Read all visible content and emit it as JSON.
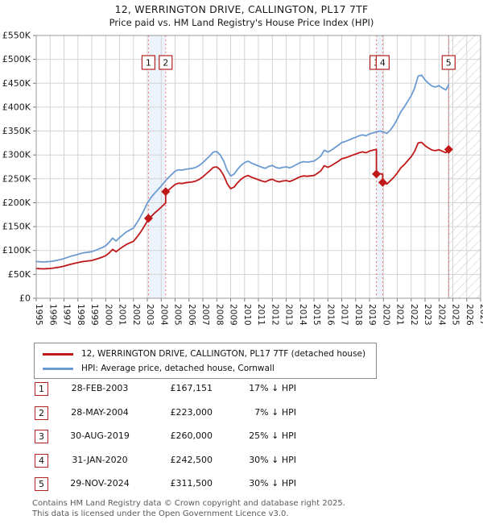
{
  "title": "12, WERRINGTON DRIVE, CALLINGTON, PL17 7TF",
  "subtitle": "Price paid vs. HM Land Registry's House Price Index (HPI)",
  "legend": [
    {
      "label": "12, WERRINGTON DRIVE, CALLINGTON, PL17 7TF (detached house)",
      "color": "#c01818"
    },
    {
      "label": "HPI: Average price, detached house, Cornwall",
      "color": "#6c9bd2"
    }
  ],
  "transactions": [
    {
      "num": "1",
      "date": "28-FEB-2003",
      "price": "£167,151",
      "delta": "17% ↓ HPI"
    },
    {
      "num": "2",
      "date": "28-MAY-2004",
      "price": "£223,000",
      "delta": "7% ↓ HPI"
    },
    {
      "num": "3",
      "date": "30-AUG-2019",
      "price": "£260,000",
      "delta": "25% ↓ HPI"
    },
    {
      "num": "4",
      "date": "31-JAN-2020",
      "price": "£242,500",
      "delta": "30% ↓ HPI"
    },
    {
      "num": "5",
      "date": "29-NOV-2024",
      "price": "£311,500",
      "delta": "30% ↓ HPI"
    }
  ],
  "footer": {
    "line1": "Contains HM Land Registry data © Crown copyright and database right 2025.",
    "line2": "This data is licensed under the Open Government Licence v3.0."
  },
  "chart_data": {
    "type": "line",
    "xlim": [
      1995,
      2027
    ],
    "ylim": [
      0,
      550
    ],
    "x_ticks": [
      1995,
      1996,
      1997,
      1998,
      1999,
      2000,
      2001,
      2002,
      2003,
      2004,
      2005,
      2006,
      2007,
      2008,
      2009,
      2010,
      2011,
      2012,
      2013,
      2014,
      2015,
      2016,
      2017,
      2018,
      2019,
      2020,
      2021,
      2022,
      2023,
      2024,
      2025,
      2026,
      2027
    ],
    "y_ticks": [
      {
        "v": 0,
        "label": "£0"
      },
      {
        "v": 50,
        "label": "£50K"
      },
      {
        "v": 100,
        "label": "£100K"
      },
      {
        "v": 150,
        "label": "£150K"
      },
      {
        "v": 200,
        "label": "£200K"
      },
      {
        "v": 250,
        "label": "£250K"
      },
      {
        "v": 300,
        "label": "£300K"
      },
      {
        "v": 350,
        "label": "£350K"
      },
      {
        "v": 400,
        "label": "£400K"
      },
      {
        "v": 450,
        "label": "£450K"
      },
      {
        "v": 500,
        "label": "£500K"
      },
      {
        "v": 550,
        "label": "£550K"
      }
    ],
    "units": "thousands_gbp",
    "bands": [
      [
        2003.08,
        2004.32
      ],
      [
        2019.5,
        2019.95
      ]
    ],
    "future_start": 2024.7,
    "sales": [
      {
        "n": "1",
        "x": 2003.08,
        "y": 167.2
      },
      {
        "n": "2",
        "x": 2004.32,
        "y": 223
      },
      {
        "n": "3",
        "x": 2019.5,
        "y": 260
      },
      {
        "n": "4",
        "x": 2019.95,
        "y": 242.5
      },
      {
        "n": "5",
        "x": 2024.7,
        "y": 311.5
      }
    ],
    "series": [
      {
        "name": "hpi",
        "color": "#6c9bd2",
        "points": [
          [
            1995,
            77
          ],
          [
            1995.25,
            76.5
          ],
          [
            1995.5,
            76
          ],
          [
            1995.75,
            76.5
          ],
          [
            1996,
            77
          ],
          [
            1996.25,
            78
          ],
          [
            1996.5,
            79.5
          ],
          [
            1996.75,
            81
          ],
          [
            1997,
            83
          ],
          [
            1997.25,
            85.5
          ],
          [
            1997.5,
            88
          ],
          [
            1997.75,
            90
          ],
          [
            1998,
            92
          ],
          [
            1998.25,
            94
          ],
          [
            1998.5,
            95.5
          ],
          [
            1998.75,
            96.5
          ],
          [
            1999,
            97.5
          ],
          [
            1999.25,
            100
          ],
          [
            1999.5,
            103
          ],
          [
            1999.75,
            106
          ],
          [
            2000,
            110
          ],
          [
            2000.25,
            117
          ],
          [
            2000.5,
            126
          ],
          [
            2000.75,
            120
          ],
          [
            2001,
            127
          ],
          [
            2001.25,
            133
          ],
          [
            2001.5,
            139
          ],
          [
            2001.75,
            143
          ],
          [
            2002,
            147
          ],
          [
            2002.25,
            158
          ],
          [
            2002.5,
            170
          ],
          [
            2002.75,
            184
          ],
          [
            2003,
            199
          ],
          [
            2003.25,
            210
          ],
          [
            2003.5,
            219
          ],
          [
            2003.75,
            227
          ],
          [
            2004,
            235
          ],
          [
            2004.25,
            244
          ],
          [
            2004.5,
            252
          ],
          [
            2004.75,
            259
          ],
          [
            2005,
            266
          ],
          [
            2005.25,
            269
          ],
          [
            2005.5,
            268
          ],
          [
            2005.75,
            270
          ],
          [
            2006,
            271
          ],
          [
            2006.25,
            272
          ],
          [
            2006.5,
            274
          ],
          [
            2006.75,
            278
          ],
          [
            2007,
            284
          ],
          [
            2007.25,
            291
          ],
          [
            2007.5,
            298
          ],
          [
            2007.75,
            306
          ],
          [
            2008,
            307
          ],
          [
            2008.25,
            300
          ],
          [
            2008.5,
            287
          ],
          [
            2008.75,
            268
          ],
          [
            2009,
            256
          ],
          [
            2009.25,
            260
          ],
          [
            2009.5,
            270
          ],
          [
            2009.75,
            278
          ],
          [
            2010,
            284
          ],
          [
            2010.25,
            287
          ],
          [
            2010.5,
            283
          ],
          [
            2010.75,
            280
          ],
          [
            2011,
            277
          ],
          [
            2011.25,
            274
          ],
          [
            2011.5,
            272
          ],
          [
            2011.75,
            276
          ],
          [
            2012,
            278
          ],
          [
            2012.25,
            274
          ],
          [
            2012.5,
            272
          ],
          [
            2012.75,
            274
          ],
          [
            2013,
            275
          ],
          [
            2013.25,
            273
          ],
          [
            2013.5,
            276
          ],
          [
            2013.75,
            280
          ],
          [
            2014,
            284
          ],
          [
            2014.25,
            286
          ],
          [
            2014.5,
            285
          ],
          [
            2014.75,
            286
          ],
          [
            2015,
            287
          ],
          [
            2015.25,
            292
          ],
          [
            2015.5,
            298
          ],
          [
            2015.75,
            310
          ],
          [
            2016,
            306
          ],
          [
            2016.25,
            310
          ],
          [
            2016.5,
            315
          ],
          [
            2016.75,
            320
          ],
          [
            2017,
            326
          ],
          [
            2017.25,
            328
          ],
          [
            2017.5,
            331
          ],
          [
            2017.75,
            334
          ],
          [
            2018,
            337
          ],
          [
            2018.25,
            340
          ],
          [
            2018.5,
            342
          ],
          [
            2018.75,
            340
          ],
          [
            2019,
            344
          ],
          [
            2019.25,
            346
          ],
          [
            2019.5,
            348
          ],
          [
            2019.75,
            350
          ],
          [
            2020,
            348
          ],
          [
            2020.25,
            345
          ],
          [
            2020.5,
            352
          ],
          [
            2020.75,
            362
          ],
          [
            2021,
            375
          ],
          [
            2021.25,
            390
          ],
          [
            2021.5,
            400
          ],
          [
            2021.75,
            412
          ],
          [
            2022,
            424
          ],
          [
            2022.25,
            440
          ],
          [
            2022.5,
            465
          ],
          [
            2022.75,
            467
          ],
          [
            2023,
            457
          ],
          [
            2023.25,
            450
          ],
          [
            2023.5,
            444
          ],
          [
            2023.75,
            442
          ],
          [
            2024,
            445
          ],
          [
            2024.25,
            440
          ],
          [
            2024.5,
            436
          ],
          [
            2024.7,
            447
          ]
        ]
      },
      {
        "name": "property",
        "color": "#c01818",
        "points": [
          [
            1995,
            62.5
          ],
          [
            1995.25,
            62
          ],
          [
            1995.5,
            61.6
          ],
          [
            1995.75,
            62
          ],
          [
            1996,
            62.5
          ],
          [
            1996.25,
            63.3
          ],
          [
            1996.5,
            64.5
          ],
          [
            1996.75,
            65.7
          ],
          [
            1997,
            67.3
          ],
          [
            1997.25,
            69.3
          ],
          [
            1997.5,
            71.4
          ],
          [
            1997.75,
            73
          ],
          [
            1998,
            74.6
          ],
          [
            1998.25,
            76.2
          ],
          [
            1998.5,
            77.4
          ],
          [
            1998.75,
            78.3
          ],
          [
            1999,
            79.1
          ],
          [
            1999.25,
            81.1
          ],
          [
            1999.5,
            83.5
          ],
          [
            1999.75,
            86
          ],
          [
            2000,
            89.2
          ],
          [
            2000.25,
            94.9
          ],
          [
            2000.5,
            102.2
          ],
          [
            2000.75,
            97.3
          ],
          [
            2001,
            103
          ],
          [
            2001.25,
            107.9
          ],
          [
            2001.5,
            112.7
          ],
          [
            2001.75,
            116
          ],
          [
            2002,
            119.2
          ],
          [
            2002.25,
            128.1
          ],
          [
            2002.5,
            137.9
          ],
          [
            2002.75,
            149.2
          ],
          [
            2003,
            161.4
          ],
          [
            2003.08,
            167.2
          ],
          [
            2003.25,
            170.3
          ],
          [
            2003.5,
            177.6
          ],
          [
            2003.75,
            184.1
          ],
          [
            2004,
            190.6
          ],
          [
            2004.25,
            197.9
          ],
          [
            2004.32,
            199.5
          ],
          [
            2004.32,
            223
          ],
          [
            2004.5,
            225.7
          ],
          [
            2004.75,
            231.9
          ],
          [
            2005,
            238.2
          ],
          [
            2005.25,
            240.9
          ],
          [
            2005.5,
            240
          ],
          [
            2005.75,
            241.8
          ],
          [
            2006,
            242.7
          ],
          [
            2006.25,
            243.6
          ],
          [
            2006.5,
            245.4
          ],
          [
            2006.75,
            249
          ],
          [
            2007,
            254.3
          ],
          [
            2007.25,
            260.6
          ],
          [
            2007.5,
            266.9
          ],
          [
            2007.75,
            274
          ],
          [
            2008,
            274.9
          ],
          [
            2008.25,
            268.7
          ],
          [
            2008.5,
            257
          ],
          [
            2008.75,
            240
          ],
          [
            2009,
            229.3
          ],
          [
            2009.25,
            232.9
          ],
          [
            2009.5,
            241.8
          ],
          [
            2009.75,
            249
          ],
          [
            2010,
            254.3
          ],
          [
            2010.25,
            257
          ],
          [
            2010.5,
            253.4
          ],
          [
            2010.75,
            250.8
          ],
          [
            2011,
            248
          ],
          [
            2011.25,
            245.4
          ],
          [
            2011.5,
            243.6
          ],
          [
            2011.75,
            247.2
          ],
          [
            2012,
            249
          ],
          [
            2012.25,
            245.4
          ],
          [
            2012.5,
            243.6
          ],
          [
            2012.75,
            245.4
          ],
          [
            2013,
            246.3
          ],
          [
            2013.25,
            244.5
          ],
          [
            2013.5,
            247.2
          ],
          [
            2013.75,
            250.8
          ],
          [
            2014,
            254.3
          ],
          [
            2014.25,
            256.1
          ],
          [
            2014.5,
            255.2
          ],
          [
            2014.75,
            256.1
          ],
          [
            2015,
            257
          ],
          [
            2015.25,
            261.5
          ],
          [
            2015.5,
            266.9
          ],
          [
            2015.75,
            277.6
          ],
          [
            2016,
            274
          ],
          [
            2016.25,
            277.6
          ],
          [
            2016.5,
            282.1
          ],
          [
            2016.75,
            286.6
          ],
          [
            2017,
            292
          ],
          [
            2017.25,
            293.8
          ],
          [
            2017.5,
            296.4
          ],
          [
            2017.75,
            299.1
          ],
          [
            2018,
            301.8
          ],
          [
            2018.25,
            304.5
          ],
          [
            2018.5,
            306.3
          ],
          [
            2018.75,
            304.5
          ],
          [
            2019,
            308.1
          ],
          [
            2019.25,
            309.9
          ],
          [
            2019.5,
            311.6
          ],
          [
            2019.5,
            260
          ],
          [
            2019.75,
            260.9
          ],
          [
            2019.95,
            259.5
          ],
          [
            2019.95,
            242.5
          ],
          [
            2020.25,
            239
          ],
          [
            2020.5,
            246
          ],
          [
            2020.75,
            253
          ],
          [
            2021,
            262.1
          ],
          [
            2021.25,
            272.6
          ],
          [
            2021.5,
            279.6
          ],
          [
            2021.75,
            287.9
          ],
          [
            2022,
            296.3
          ],
          [
            2022.25,
            307.5
          ],
          [
            2022.5,
            325
          ],
          [
            2022.75,
            326.4
          ],
          [
            2023,
            319.4
          ],
          [
            2023.25,
            314.5
          ],
          [
            2023.5,
            310.3
          ],
          [
            2023.75,
            308.9
          ],
          [
            2024,
            311
          ],
          [
            2024.25,
            307.5
          ],
          [
            2024.5,
            304.7
          ],
          [
            2024.7,
            311.5
          ]
        ]
      }
    ],
    "colors": {
      "grid": "#d3d3d3",
      "border": "#999999",
      "vline": "#f07575",
      "band": "#edf3fb",
      "hatch": "#c8c8c8",
      "marker_box_border": "#b42020"
    }
  }
}
